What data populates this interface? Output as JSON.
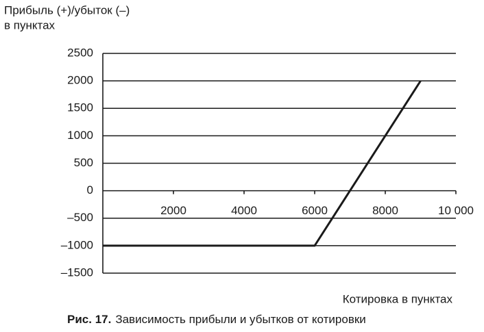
{
  "chart_data": {
    "type": "line",
    "ylabel": [
      "Прибыль (+)/убыток (–)",
      "в пунктах"
    ],
    "xlabel": "Котировка в пунктах",
    "caption": {
      "number": "Рис. 17.",
      "text": "Зависимость прибыли и убытков от котировки"
    },
    "x": [
      0,
      6000,
      9000
    ],
    "series": [
      {
        "values": [
          -1000,
          -1000,
          2000
        ],
        "color": "#1a1a1a"
      }
    ],
    "xlim": [
      0,
      10000
    ],
    "xticks": [
      2000,
      4000,
      6000,
      8000,
      {
        "value": 10000,
        "label": "10 000"
      }
    ],
    "ylim": [
      -1500,
      2500
    ],
    "yticks": [
      2500,
      2000,
      1500,
      1000,
      500,
      0,
      {
        "value": -500,
        "label": "–500"
      },
      {
        "value": -1000,
        "label": "–1000"
      },
      {
        "value": -1500,
        "label": "–1500"
      }
    ],
    "grid": true
  }
}
